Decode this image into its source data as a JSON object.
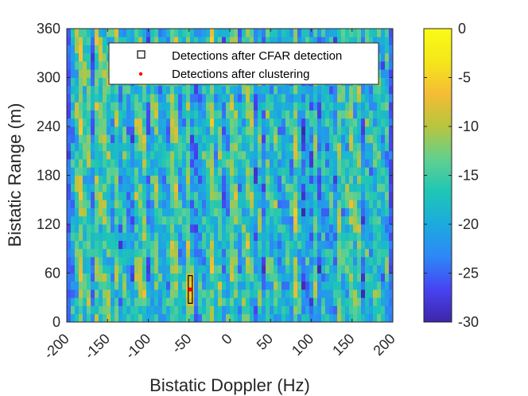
{
  "chart_data": {
    "type": "heatmap",
    "xlabel": "Bistatic Doppler (Hz)",
    "ylabel": "Bistatic Range (m)",
    "xlim": [
      -200,
      200
    ],
    "ylim": [
      0,
      360
    ],
    "xticks": [
      -200,
      -150,
      -100,
      -50,
      0,
      50,
      100,
      150,
      200
    ],
    "yticks": [
      0,
      60,
      120,
      180,
      240,
      300,
      360
    ],
    "colorbar": {
      "clim": [
        -30,
        0
      ],
      "ticks": [
        0,
        -5,
        -10,
        -15,
        -20,
        -25,
        -30
      ],
      "colors": [
        "#3e26a8",
        "#4743f2",
        "#2e87f7",
        "#1cabde",
        "#1ec6b5",
        "#62d08f",
        "#b7c53f",
        "#f5bc35",
        "#f5e71a",
        "#f9fb15"
      ]
    },
    "legend": {
      "location": "top-right",
      "entries": [
        {
          "marker": "square",
          "label": "Detections after CFAR detection",
          "color": "#000000"
        },
        {
          "marker": "dot",
          "label": "Detections after clustering",
          "color": "#ff0000"
        }
      ]
    },
    "detections_cfar": [
      {
        "doppler_from": -51,
        "doppler_to": -46,
        "range_from": 23,
        "range_to": 57
      }
    ],
    "detections_clustering": [
      {
        "doppler": -48.5,
        "range": 40
      }
    ],
    "peak": {
      "doppler": -48.5,
      "range": 40,
      "level_db": 0
    }
  }
}
